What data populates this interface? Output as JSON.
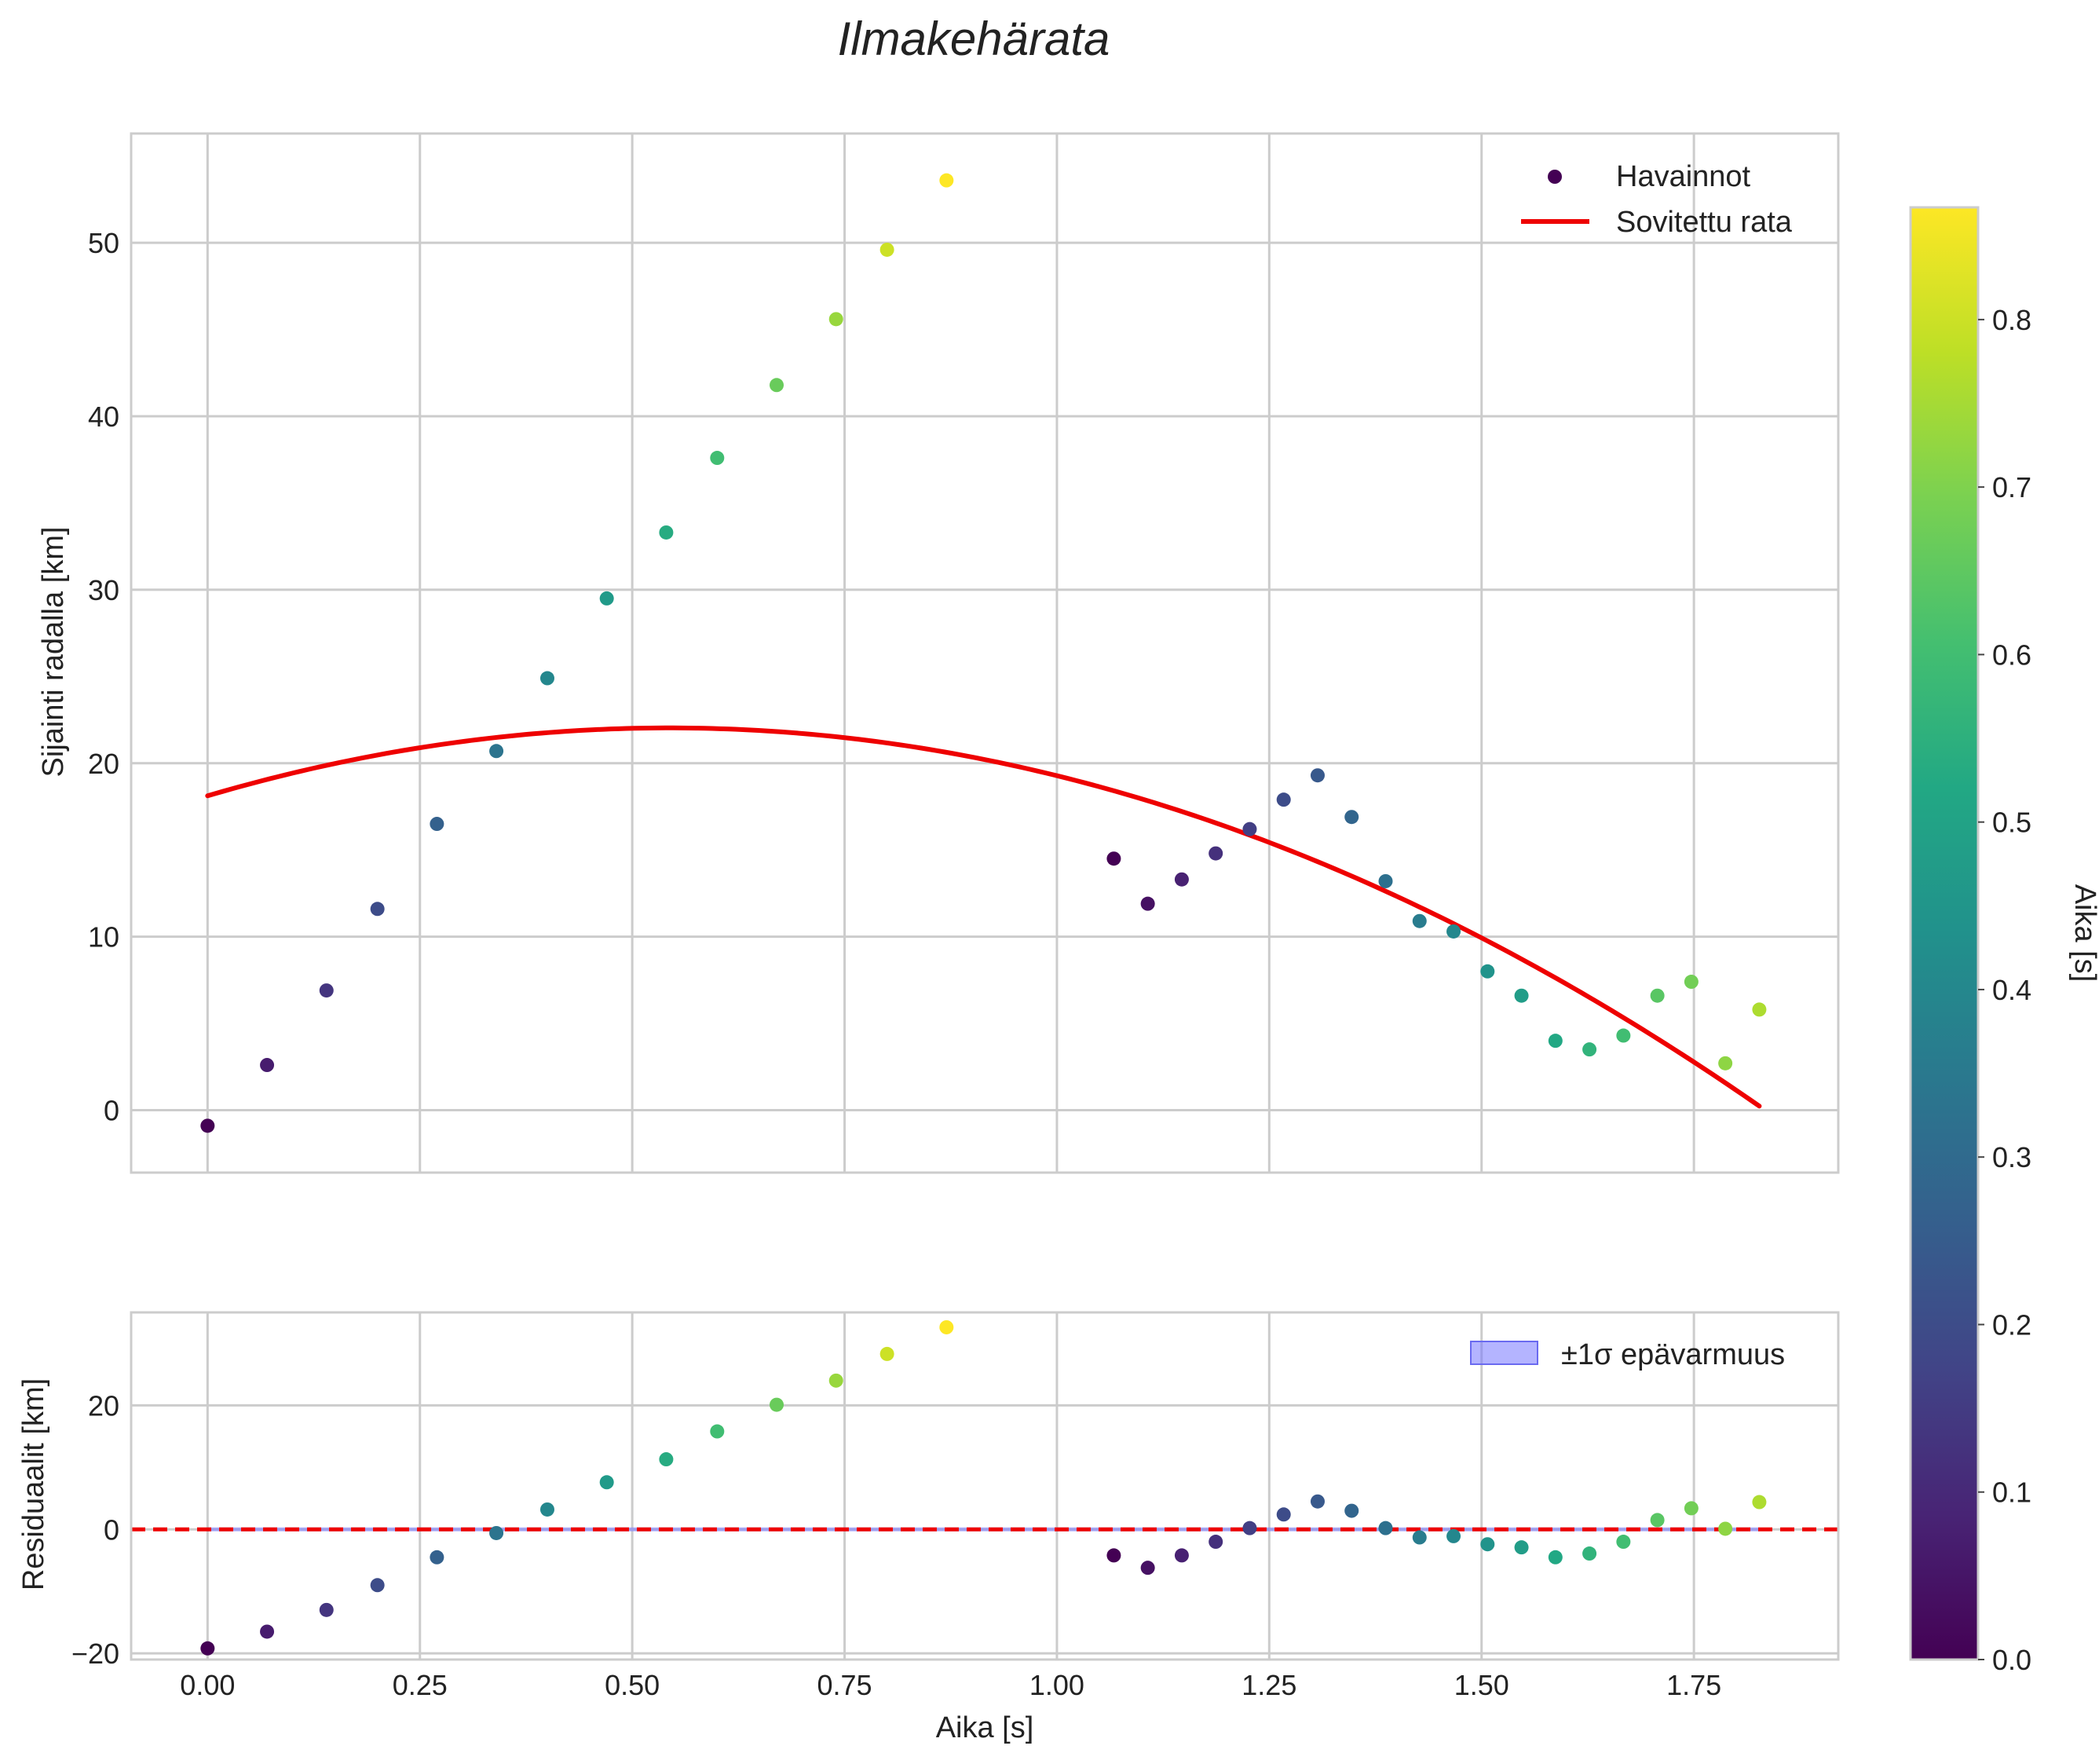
{
  "chart_data": {
    "type": "scatter",
    "title": "Ilmakehärata",
    "xlabel": "Aika [s]",
    "xlim": [
      -0.09,
      1.92
    ],
    "x_ticks": [
      0.0,
      0.25,
      0.5,
      0.75,
      1.0,
      1.25,
      1.5,
      1.75
    ],
    "x_tick_labels": [
      "0.00",
      "0.25",
      "0.50",
      "0.75",
      "1.00",
      "1.25",
      "1.50",
      "1.75"
    ],
    "main": {
      "ylabel": "Sijainti radalla [km]",
      "ylim": [
        -3.6,
        56.3
      ],
      "y_ticks": [
        0,
        10,
        20,
        30,
        40,
        50
      ],
      "y_tick_labels": [
        "0",
        "10",
        "20",
        "30",
        "40",
        "50"
      ],
      "grid": true,
      "legend_position": "top-right",
      "series": [
        {
          "name": "Havainnot",
          "kind": "scatter",
          "x": [
            0.0,
            0.07,
            0.14,
            0.2,
            0.27,
            0.34,
            0.4,
            0.47,
            0.54,
            0.6,
            0.67,
            0.74,
            0.8,
            0.87,
            1.067,
            1.107,
            1.147,
            1.187,
            1.227,
            1.267,
            1.307,
            1.347,
            1.387,
            1.427,
            1.467,
            1.507,
            1.547,
            1.587,
            1.627,
            1.667,
            1.707,
            1.747,
            1.787,
            1.827
          ],
          "y": [
            -0.9,
            2.6,
            6.9,
            11.6,
            16.5,
            20.7,
            24.9,
            29.5,
            33.3,
            37.6,
            41.8,
            45.6,
            49.6,
            53.6,
            14.5,
            11.9,
            13.3,
            14.8,
            16.2,
            17.9,
            19.3,
            16.9,
            13.2,
            10.9,
            10.3,
            8.0,
            6.6,
            4.0,
            3.5,
            4.3,
            6.6,
            7.4,
            2.7,
            5.8
          ],
          "color_value": [
            0.0,
            0.067,
            0.133,
            0.2,
            0.267,
            0.333,
            0.4,
            0.467,
            0.533,
            0.6,
            0.667,
            0.733,
            0.8,
            0.867,
            0.0,
            0.04,
            0.08,
            0.12,
            0.16,
            0.2,
            0.24,
            0.28,
            0.32,
            0.36,
            0.4,
            0.44,
            0.48,
            0.52,
            0.56,
            0.6,
            0.64,
            0.68,
            0.72,
            0.76
          ]
        },
        {
          "name": "Sovitettu rata",
          "kind": "line",
          "color": "#ee0000",
          "quadratic": {
            "a": -13.24,
            "b": 14.4,
            "c": 18.12
          },
          "x_range": [
            0.0,
            1.827
          ]
        }
      ]
    },
    "residuals": {
      "ylabel": "Residuaalit [km]",
      "ylim": [
        -21,
        35
      ],
      "y_ticks": [
        -20,
        0,
        20
      ],
      "y_tick_labels": [
        "−20",
        "0",
        "20"
      ],
      "grid": true,
      "legend_position": "top-right",
      "band_label": "±1σ epävarmuus",
      "band_color": "#7777ff",
      "zero_line_color": "#ee0000",
      "x": [
        0.0,
        0.07,
        0.14,
        0.2,
        0.27,
        0.34,
        0.4,
        0.47,
        0.54,
        0.6,
        0.67,
        0.74,
        0.8,
        0.87,
        1.067,
        1.107,
        1.147,
        1.187,
        1.227,
        1.267,
        1.307,
        1.347,
        1.387,
        1.427,
        1.467,
        1.507,
        1.547,
        1.587,
        1.627,
        1.667,
        1.707,
        1.747,
        1.787,
        1.827
      ],
      "y": [
        -19.2,
        -16.5,
        -13.0,
        -9.0,
        -4.5,
        -0.6,
        3.2,
        7.6,
        11.3,
        15.8,
        20.1,
        24.0,
        28.3,
        32.6,
        -4.2,
        -6.2,
        -4.2,
        -2.0,
        0.2,
        2.4,
        4.5,
        3.0,
        0.2,
        -1.3,
        -1.1,
        -2.4,
        -2.9,
        -4.5,
        -3.9,
        -2.0,
        1.5,
        3.4,
        0.1,
        4.4
      ]
    },
    "colorbar": {
      "label": "Aika [s]",
      "colormap": "viridis",
      "range": [
        0,
        0.867
      ],
      "ticks": [
        0.0,
        0.1,
        0.2,
        0.3,
        0.4,
        0.5,
        0.6,
        0.7,
        0.8
      ],
      "tick_labels": [
        "0.0",
        "0.1",
        "0.2",
        "0.3",
        "0.4",
        "0.5",
        "0.6",
        "0.7",
        "0.8"
      ]
    }
  }
}
